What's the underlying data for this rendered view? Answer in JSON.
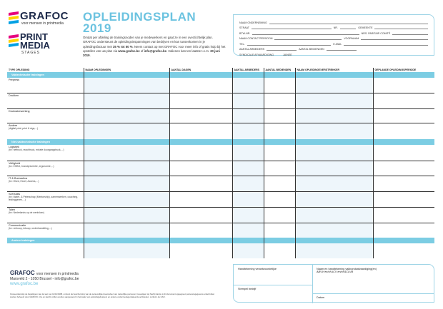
{
  "logo": {
    "brand": "GRAFOC",
    "tagline": "voor mensen in printmedia",
    "brand2_line1": "PRINT",
    "brand2_line2": "MEDIA",
    "brand2_sub": "STAGES",
    "colors": [
      "#e6007e",
      "#ffd200",
      "#00a0e3",
      "#1d2a4a"
    ]
  },
  "title": {
    "line1": "OPLEIDINGSPLAN",
    "line2": "2019"
  },
  "intro": {
    "text": "Omdat per afdeling de trainingsnoden van je medewerkers en gaat ze in een overzichtelijk plan. GRAFOC ondersteunt de opleidingsinspanningen van bedrijven en kan tussenkomen in je opleidingsfactuur met ",
    "bold1": "35 % tot 50 %",
    "text2": ". Neem contact op met GRAFOC voor meer info of gratis hulp bij het opstellen van uw plan via ",
    "bold2": "www.grafoc.be",
    "text3": " of ",
    "bold3": "info@grafoc.be",
    "text4": ". Indienen kan ten laatste t.e.m. ",
    "bold4": "30 juni 2019",
    "text5": "."
  },
  "form": {
    "fields": [
      "NAAM ONDERNEMING",
      "STRAAT",
      "NR.",
      "GEMEENTE",
      "BTW-NR.",
      "NRS. PARITAIR COMITÉ",
      "NAAM CONTACTPERSOON",
      "VOORNAAM",
      "TEL.",
      "E-MAIL",
      "AANTAL ARBEIDERS",
      "AANTAL BEDIENDEN",
      "SYNDICALE AFVAARDIGING",
      "JA/NEE"
    ]
  },
  "table": {
    "headers": [
      "TYPE OPLEIDING",
      "NAAM OPLEIDINGEN",
      "AANTAL DAGEN",
      "AANTAL ARBEIDERS",
      "AANTAL BEDIENDEN",
      "NAAM OPLEIDINGSVERSTREKKER",
      "GEPLANDE OPLEIDINGSPERIODE"
    ],
    "sections": [
      {
        "title": "Vaktechnische trainingen",
        "rows": [
          {
            "label": "Prepress",
            "sub": ""
          },
          {
            "label": "Drukken",
            "sub": ""
          },
          {
            "label": "Druknabewerking",
            "sub": ""
          },
          {
            "label": "Andere",
            "sub": "(digital print, print & sign,...)"
          }
        ]
      },
      {
        "title": "Niet-vaktechnische trainingen",
        "rows": [
          {
            "label": "Logistiek",
            "sub": "(bv: heftruck, reachtruck, enkele doorgangstruck,...)"
          },
          {
            "label": "Veiligheid",
            "sub": "(bv: EHBO, brandpreventie, ergonomie,...)"
          },
          {
            "label": "IT & Bureautica",
            "sub": "(bv: Word, Excel, Access,...)"
          },
          {
            "label": "Soft skills",
            "sub": "(bv: Mater- & Peterschap (Mentorship), samenwerken, coaching, leidinggeven,...)"
          },
          {
            "label": "Talen",
            "sub": "(bv: Nederlands op de werkvloer)"
          },
          {
            "label": "Communicatie",
            "sub": "(bv: verkoop, inkoop, onderhandeling,...)"
          }
        ]
      },
      {
        "title": "Andere trainingen",
        "rows": [
          {
            "label": "",
            "sub": ""
          }
        ]
      }
    ]
  },
  "footer": {
    "brand": "GRAFOC",
    "tagline": "voor mensen in printmedia",
    "address": "Marsveld 2 - 1050 Brussel - info@grafoc.be",
    "web": "www.grafoc.be",
    "legal": "Overeenkomstig de bepalingen van de wet van 12/12/1998, omtrent de bescherming van de persoonlijke levenssfeer van natuurlijke personen, bevestigen wij hierbij dat de in dit document opgegeven persoonsgegevens enkel zullen worden beheerd door GRAFOC vzw en slechts zullen worden aangewend in het kader van opleidingsdossiers en andere onderzoeksgerelateerde activiteiten, conform de CAO."
  },
  "signature": {
    "left_top": "Handtekening verantwoordelijke",
    "left_bottom": "Stempel bedrijf",
    "right_top": "Naam en handtekening vakbondsafvaardiging(en)",
    "right_top_sub": "ABVV en/of ACV en/of ACLVB",
    "right_bottom": "Datum"
  }
}
